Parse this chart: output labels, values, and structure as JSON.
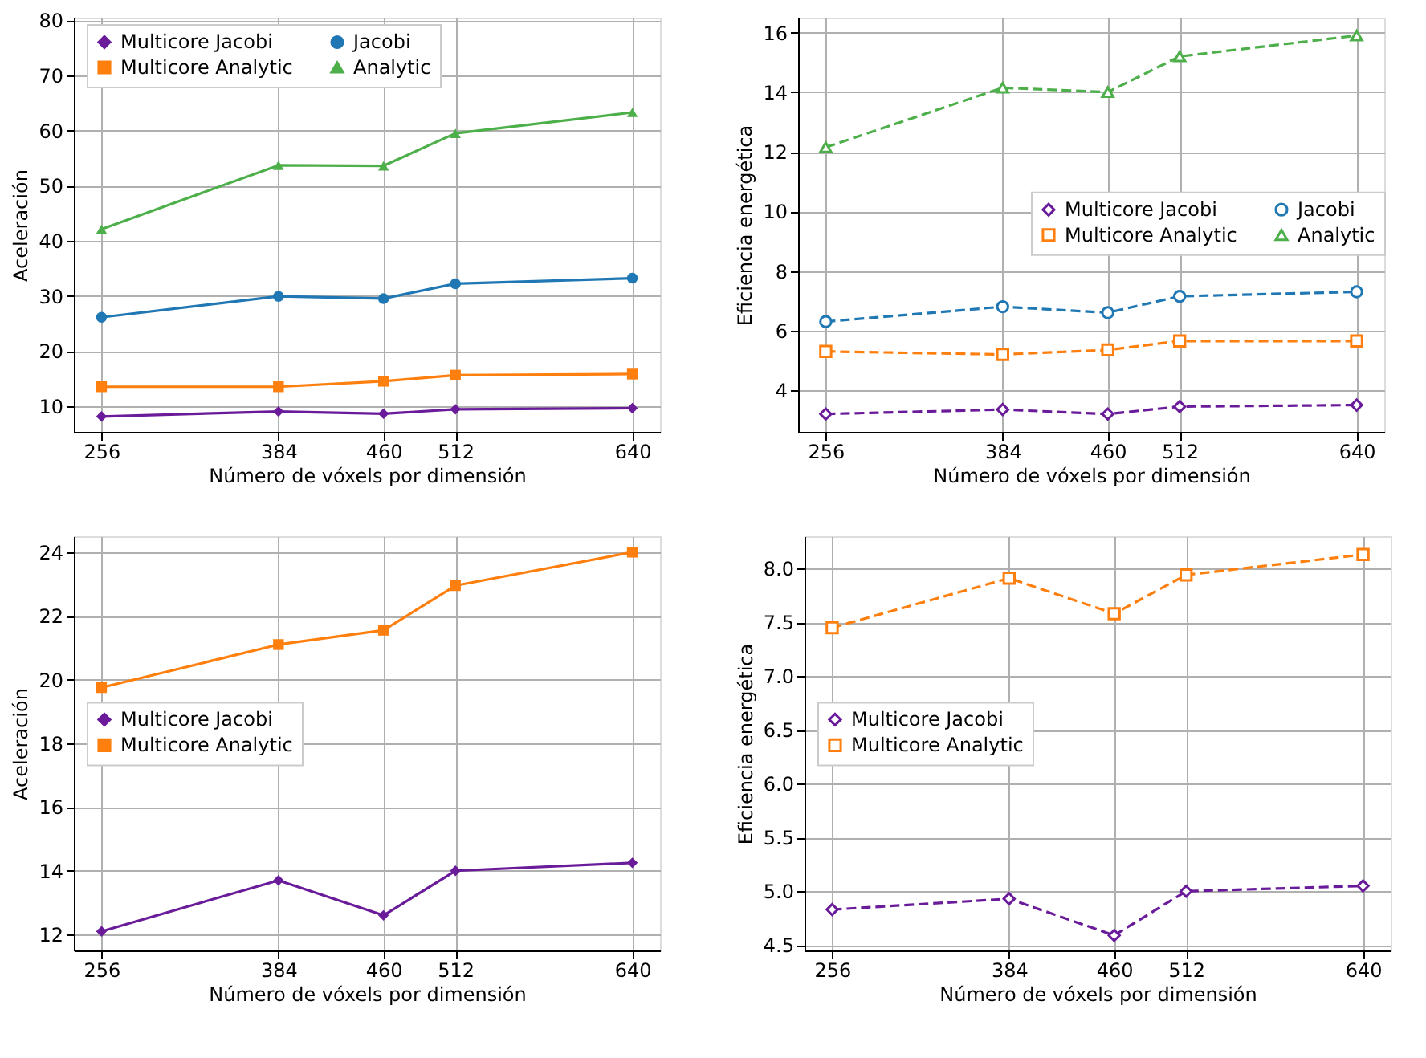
{
  "chart_data": [
    {
      "type": "line",
      "xlabel": "Número de vóxels por dimensión",
      "ylabel": "Aceleración",
      "x": [
        256,
        384,
        460,
        512,
        640
      ],
      "xlim": [
        236,
        660
      ],
      "xticks": [
        256,
        384,
        460,
        512,
        640
      ],
      "ylim": [
        5.3,
        80.5
      ],
      "yticks": [
        10,
        20,
        30,
        40,
        50,
        60,
        70,
        80
      ],
      "grid": true,
      "legend": "top left",
      "line_style": "solid",
      "series": [
        {
          "name": "Multicore Jacobi",
          "color": "#6a1b9a",
          "marker": "diamond",
          "values": [
            8.1,
            9.0,
            8.6,
            9.4,
            9.6
          ]
        },
        {
          "name": "Multicore Analytic",
          "color": "#ff7f0e",
          "marker": "square",
          "values": [
            13.5,
            13.5,
            14.5,
            15.6,
            15.8
          ]
        },
        {
          "name": "Jacobi",
          "color": "#1f77b4",
          "marker": "circle",
          "values": [
            26.1,
            29.9,
            29.5,
            32.2,
            33.2
          ]
        },
        {
          "name": "Analytic",
          "color": "#4daf4a",
          "marker": "triangle",
          "values": [
            42.1,
            53.7,
            53.6,
            59.5,
            63.3
          ]
        }
      ]
    },
    {
      "type": "line",
      "xlabel": "Número de vóxels por dimensión",
      "ylabel": "Eficiencia energética",
      "x": [
        256,
        384,
        460,
        512,
        640
      ],
      "xlim": [
        236,
        660
      ],
      "xticks": [
        256,
        384,
        460,
        512,
        640
      ],
      "ylim": [
        2.6,
        16.5
      ],
      "yticks": [
        4,
        6,
        8,
        10,
        12,
        14,
        16
      ],
      "grid": true,
      "legend": "right",
      "line_style": "dashed",
      "series": [
        {
          "name": "Multicore Jacobi",
          "color": "#6a1b9a",
          "marker": "diamond",
          "values": [
            3.2,
            3.35,
            3.2,
            3.45,
            3.5
          ]
        },
        {
          "name": "Multicore Analytic",
          "color": "#ff7f0e",
          "marker": "square",
          "values": [
            5.3,
            5.2,
            5.35,
            5.65,
            5.65
          ]
        },
        {
          "name": "Jacobi",
          "color": "#1f77b4",
          "marker": "circle",
          "values": [
            6.3,
            6.8,
            6.6,
            7.15,
            7.3
          ]
        },
        {
          "name": "Analytic",
          "color": "#4daf4a",
          "marker": "triangle",
          "values": [
            12.15,
            14.15,
            14.0,
            15.2,
            15.9
          ]
        }
      ]
    },
    {
      "type": "line",
      "xlabel": "Número de vóxels por dimensión",
      "ylabel": "Aceleración",
      "x": [
        256,
        384,
        460,
        512,
        640
      ],
      "xlim": [
        236,
        660
      ],
      "xticks": [
        256,
        384,
        460,
        512,
        640
      ],
      "ylim": [
        11.5,
        24.5
      ],
      "yticks": [
        12,
        14,
        16,
        18,
        20,
        22,
        24
      ],
      "grid": true,
      "legend": "left",
      "line_style": "solid",
      "series": [
        {
          "name": "Multicore Jacobi",
          "color": "#6a1b9a",
          "marker": "diamond",
          "values": [
            12.1,
            13.7,
            12.6,
            14.0,
            14.25
          ]
        },
        {
          "name": "Multicore Analytic",
          "color": "#ff7f0e",
          "marker": "square",
          "values": [
            19.75,
            21.1,
            21.55,
            22.95,
            24.0
          ]
        }
      ]
    },
    {
      "type": "line",
      "xlabel": "Número de vóxels por dimensión",
      "ylabel": "Eficiencia energética",
      "x": [
        256,
        384,
        460,
        512,
        640
      ],
      "xlim": [
        236,
        660
      ],
      "xticks": [
        256,
        384,
        460,
        512,
        640
      ],
      "ylim": [
        4.45,
        8.3
      ],
      "yticks": [
        {
          "value": 4.5,
          "label": "4.5"
        },
        {
          "value": 5,
          "label": "5.0"
        },
        {
          "value": 5.5,
          "label": "5.5"
        },
        {
          "value": 6,
          "label": "6.0"
        },
        {
          "value": 6.5,
          "label": "6.5"
        },
        {
          "value": 7,
          "label": "7.0"
        },
        {
          "value": 7.5,
          "label": "7.5"
        },
        {
          "value": 8,
          "label": "8.0"
        }
      ],
      "grid": true,
      "legend": "left",
      "line_style": "dashed",
      "series": [
        {
          "name": "Multicore Jacobi",
          "color": "#6a1b9a",
          "marker": "diamond",
          "values": [
            4.83,
            4.93,
            4.59,
            5.0,
            5.05
          ]
        },
        {
          "name": "Multicore Analytic",
          "color": "#ff7f0e",
          "marker": "square",
          "values": [
            7.45,
            7.91,
            7.58,
            7.94,
            8.13
          ]
        }
      ]
    }
  ]
}
